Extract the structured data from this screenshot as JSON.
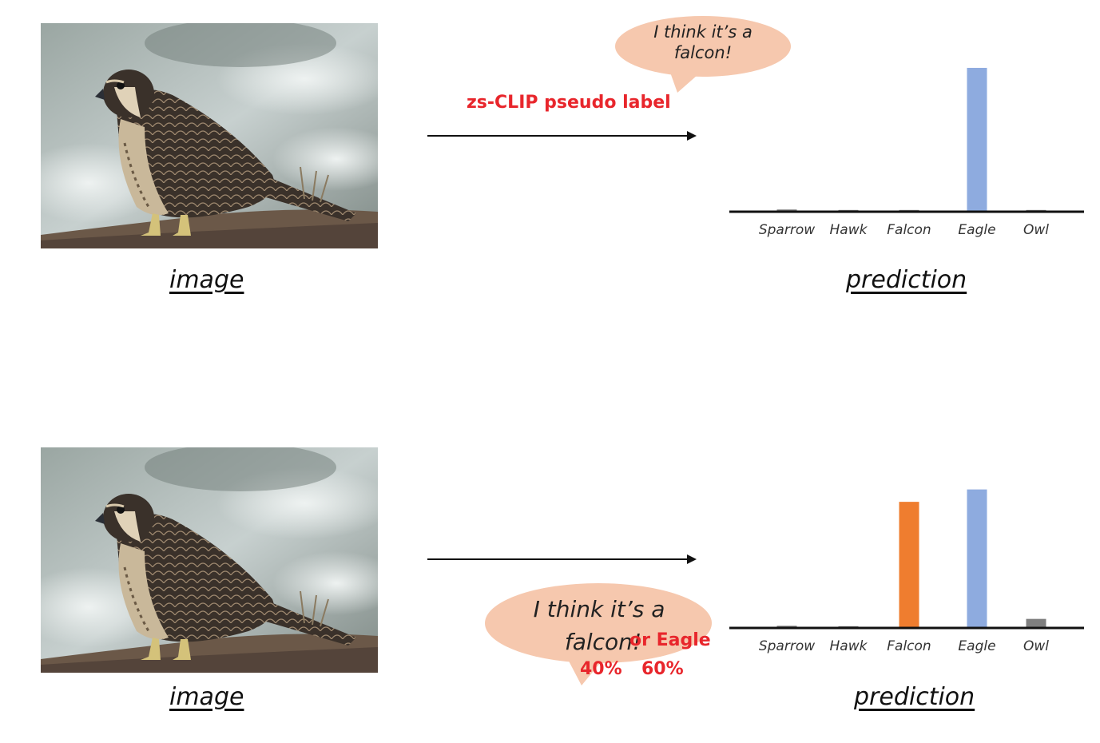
{
  "colors": {
    "bubble_fill": "#f6c8ae",
    "pseudo_label_red": "#e8262c",
    "bar_blue": "#8eabdf",
    "bar_orange": "#ef7d2f",
    "bar_gray": "#7f7f7f"
  },
  "top_row": {
    "image_caption": "image",
    "prediction_caption": "prediction",
    "bubble_line1": "I think it’s a",
    "bubble_line2": "falcon!",
    "arrow_label": "zs-CLIP pseudo label"
  },
  "bottom_row": {
    "image_caption": "image",
    "prediction_caption": "prediction",
    "bubble_line1": "I think it’s a",
    "bubble_line2": "falcon!",
    "alt_label": "or Eagle",
    "pct_falcon": "40%",
    "pct_eagle": "60%"
  },
  "chart_data": [
    {
      "type": "bar",
      "categories": [
        "Sparrow",
        "Hawk",
        "Falcon",
        "Eagle",
        "Owl"
      ],
      "values": [
        0.01,
        0,
        0,
        1.0,
        0.005
      ],
      "colors": [
        "#7f7f7f",
        "#7f7f7f",
        "#7f7f7f",
        "#8eabdf",
        "#7f7f7f"
      ],
      "title": "",
      "xlabel": "",
      "ylabel": "",
      "ylim": [
        0,
        1.05
      ]
    },
    {
      "type": "bar",
      "categories": [
        "Sparrow",
        "Hawk",
        "Falcon",
        "Eagle",
        "Owl"
      ],
      "values": [
        0.01,
        0,
        0.91,
        1.0,
        0.06
      ],
      "colors": [
        "#7f7f7f",
        "#7f7f7f",
        "#ef7d2f",
        "#8eabdf",
        "#7f7f7f"
      ],
      "title": "",
      "xlabel": "",
      "ylabel": "",
      "ylim": [
        0,
        1.05
      ]
    }
  ]
}
